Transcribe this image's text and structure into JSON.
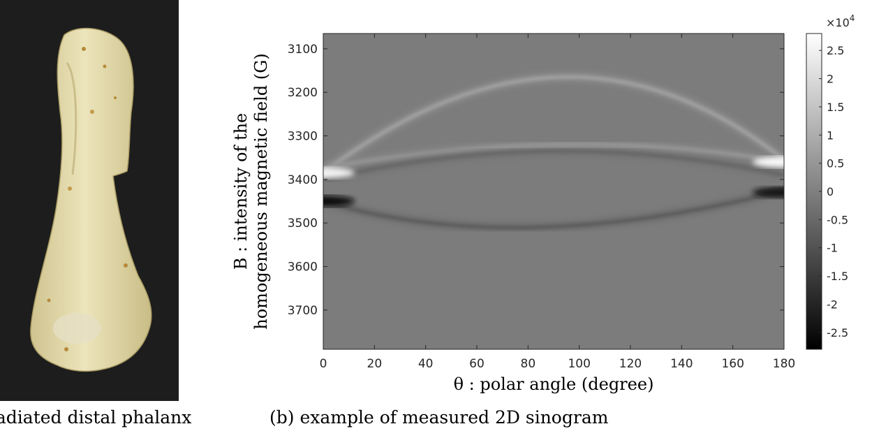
{
  "panel_a": {
    "caption": "irradiated distal phalanx"
  },
  "panel_b": {
    "caption": "(b) example of measured 2D sinogram"
  },
  "chart_data": {
    "type": "heatmap",
    "title": "",
    "xlabel": "θ : polar angle (degree)",
    "ylabel_line1": "B : intensity of the",
    "ylabel_line2": "homogeneous magnetic field (G)",
    "xlim": [
      0,
      180
    ],
    "ylim": [
      3790,
      3065
    ],
    "y_reversed": true,
    "x_ticks": [
      0,
      20,
      40,
      60,
      80,
      100,
      120,
      140,
      160,
      180
    ],
    "y_ticks": [
      3100,
      3200,
      3300,
      3400,
      3500,
      3600,
      3700
    ],
    "colormap": "gray",
    "colorbar": {
      "multiplier_text": "×10",
      "multiplier_exp": "4",
      "range": [
        -2.8,
        2.8
      ],
      "ticks": [
        2.5,
        2,
        1.5,
        1,
        0.5,
        0,
        -0.5,
        -1,
        -1.5,
        -2,
        -2.5
      ],
      "tick_labels": [
        "2.5",
        "2",
        "1.5",
        "1",
        "0.5",
        "0",
        "-0.5",
        "-1",
        "-1.5",
        "-2",
        "-2.5"
      ]
    },
    "features": [
      {
        "kind": "bright-arc",
        "apex_theta": 95,
        "apex_B": 3165,
        "end_B_left": 3385,
        "end_B_right": 3355,
        "intensity": 0.35
      },
      {
        "kind": "bright-arc",
        "apex_theta": 95,
        "apex_B": 3320,
        "end_B_left": 3375,
        "end_B_right": 3360,
        "intensity": 0.25
      },
      {
        "kind": "dark-arc",
        "apex_theta": 75,
        "apex_B": 3510,
        "end_B_left": 3450,
        "end_B_right": 3425,
        "intensity": -0.3
      },
      {
        "kind": "dark-arc",
        "apex_theta": 90,
        "apex_B": 3335,
        "end_B_left": 3400,
        "end_B_right": 3390,
        "intensity": -0.2
      },
      {
        "kind": "edge-bright",
        "theta": 0,
        "B": 3385,
        "intensity": 0.9
      },
      {
        "kind": "edge-dark",
        "theta": 0,
        "B": 3450,
        "intensity": -0.85
      },
      {
        "kind": "edge-bright",
        "theta": 180,
        "B": 3360,
        "intensity": 0.95
      },
      {
        "kind": "edge-dark",
        "theta": 180,
        "B": 3430,
        "intensity": -0.8
      }
    ]
  }
}
